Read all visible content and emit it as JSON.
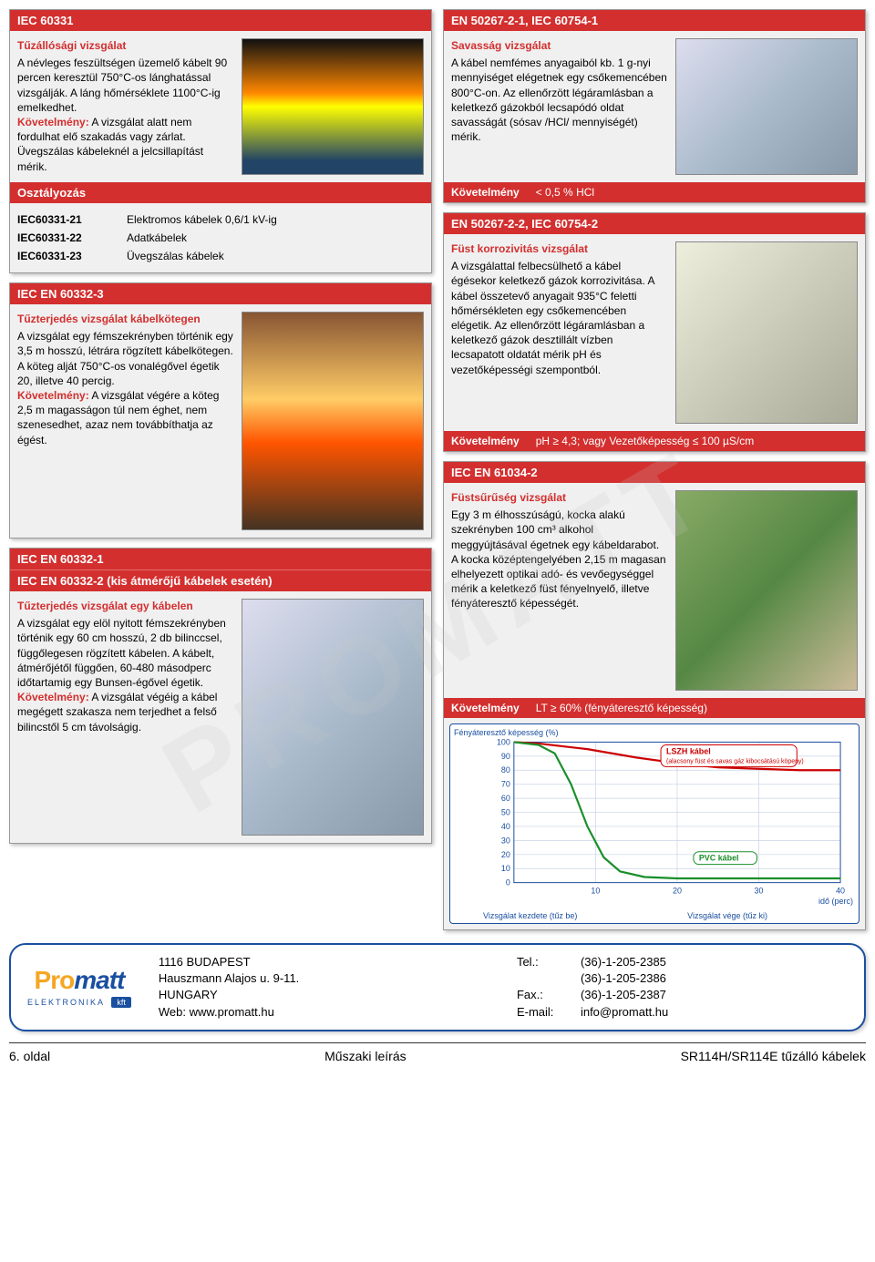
{
  "sec1": {
    "header": "IEC 60331",
    "title": "Tűzállósági vizsgálat",
    "p1": "A névleges feszültségen üzemelő kábelt 90 percen keresztül 750°C-os lánghatással vizsgálják. A láng hőmérséklete 1100°C-ig emelkedhet.",
    "kov_label": "Követelmény:",
    "p2": " A vizsgálat alatt nem fordulhat elő szakadás vagy zárlat. Üvegszálas kábeleknél a jelcsillapítást mérik."
  },
  "class": {
    "header": "Osztályozás",
    "rows": [
      {
        "k": "IEC60331-21",
        "v": "Elektromos kábelek 0,6/1 kV-ig"
      },
      {
        "k": "IEC60331-22",
        "v": "Adatkábelek"
      },
      {
        "k": "IEC60331-23",
        "v": "Üvegszálas kábelek"
      }
    ]
  },
  "sec2": {
    "header": "IEC EN 60332-3",
    "title": "Tűzterjedés vizsgálat kábelkötegen",
    "p1": "A vizsgálat egy fémszekrényben történik egy 3,5 m hosszú, létrára rögzített kábelkötegen. A köteg alját 750°C-os vonalégővel égetik 20, illetve 40 percig.",
    "kov_label": "Követelmény:",
    "p2": " A vizsgálat végére a köteg 2,5 m magasságon túl nem éghet, nem szenesedhet, azaz nem továbbíthatja az égést."
  },
  "sec3": {
    "header": "IEC EN 60332-1",
    "header2": "IEC EN 60332-2 (kis átmérőjű kábelek esetén)",
    "title": "Tűzterjedés vizsgálat egy kábelen",
    "p1": "A vizsgálat egy elöl nyitott fémszekrényben történik egy 60 cm hosszú, 2 db bilinccsel, függőlegesen rögzített kábelen. A kábelt, átmérőjétől függően, 60-480 másodperc időtartamig egy Bunsen-égővel égetik.",
    "kov_label": "Követelmény:",
    "p2": " A vizsgálat végéig a kábel megégett szakasza nem terjedhet a felső bilincstől 5 cm távolságig."
  },
  "sec4": {
    "header": "EN 50267-2-1, IEC 60754-1",
    "title": "Savasság vizsgálat",
    "p1": "A kábel nemfémes anyagaiból kb. 1 g-nyi mennyiséget elégetnek egy csőkemencében 800°C-on. Az ellenőrzött légáramlásban a keletkező gázokból lecsapódó oldat savasságát (sósav /HCl/ mennyiségét) mérik.",
    "req_label": "Követelmény",
    "req_val": "< 0,5 % HCl"
  },
  "sec5": {
    "header": "EN 50267-2-2, IEC 60754-2",
    "title": "Füst korrozivitás vizsgálat",
    "p1": "A vizsgálattal felbecsülhető a kábel égésekor keletkező gázok korrozivitása. A kábel összetevő anyagait 935°C feletti hőmérsékleten egy csőkemencében elégetik. Az ellenőrzött légáramlásban a keletkező gázok desztillált vízben lecsapatott oldatát mérik pH és vezetőképességi szempontból.",
    "req_label": "Követelmény",
    "req_val": "pH ≥ 4,3; vagy Vezetőképesség ≤ 100 µS/cm"
  },
  "sec6": {
    "header": "IEC EN 61034-2",
    "title": "Füstsűrűség vizsgálat",
    "p1": "Egy 3 m élhosszúságú, kocka alakú szekrényben 100 cm³ alkohol meggyújtásával égetnek egy kábeldarabot. A kocka középtengelyében 2,15 m magasan elhelyezett optikai adó- és vevőegységgel mérik a keletkező füst fényelnyelő, illetve fényáteresztő képességét.",
    "req_label": "Követelmény",
    "req_val": "LT ≥ 60% (fényáteresztő képesség)"
  },
  "chart": {
    "ylabel": "Fényáteresztő\nképesség\n(%)",
    "xlabel": "idő\n(perc)",
    "ylim": [
      0,
      100
    ],
    "ytick_step": 10,
    "xlim": [
      0,
      40
    ],
    "xtick_step": 10,
    "line_lszh": {
      "color": "#cc0000",
      "label": "LSZH kábel",
      "sub": "(alacsony füst és savas gáz kibocsátású köpeny)",
      "points": [
        [
          0,
          100
        ],
        [
          3,
          99
        ],
        [
          6,
          97
        ],
        [
          9,
          95
        ],
        [
          12,
          92
        ],
        [
          15,
          89
        ],
        [
          20,
          85
        ],
        [
          25,
          82
        ],
        [
          30,
          81
        ],
        [
          35,
          80
        ],
        [
          40,
          80
        ]
      ]
    },
    "line_pvc": {
      "color": "#1a8f2a",
      "label": "PVC kábel",
      "points": [
        [
          0,
          100
        ],
        [
          3,
          98
        ],
        [
          5,
          92
        ],
        [
          7,
          70
        ],
        [
          9,
          40
        ],
        [
          11,
          18
        ],
        [
          13,
          8
        ],
        [
          16,
          4
        ],
        [
          20,
          3
        ],
        [
          30,
          3
        ],
        [
          40,
          3
        ]
      ]
    },
    "note_left": "Vizsgálat\nkezdete\n(tűz be)",
    "note_right": "Vizsgálat\nvége\n(tűz ki)",
    "grid_color": "#c8d4e6"
  },
  "footer": {
    "addr1": "1116 BUDAPEST",
    "addr2": "Hauszmann Alajos u. 9-11.",
    "addr3": "HUNGARY",
    "addr4": "Web: www.promatt.hu",
    "tel_label": "Tel.:",
    "tel1": "(36)-1-205-2385",
    "tel2": "(36)-1-205-2386",
    "fax_label": "Fax.:",
    "fax": "(36)-1-205-2387",
    "email_label": "E-mail:",
    "email": "info@promatt.hu",
    "logo_main1": "Pro",
    "logo_main2": "matt",
    "logo_sub": "ELEKTRONIKA",
    "logo_kft": "kft"
  },
  "pagefoot": {
    "left": "6. oldal",
    "center": "Műszaki leírás",
    "right": "SR114H/SR114E tűzálló kábelek"
  },
  "watermark": "PROMATT"
}
